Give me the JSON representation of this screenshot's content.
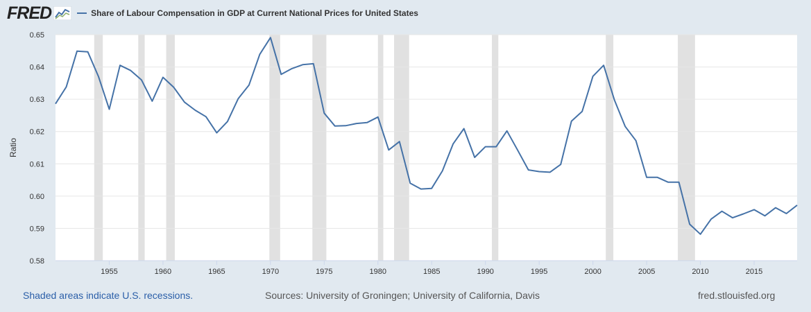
{
  "logo": {
    "text": "FRED",
    "icon": "chart-line-icon"
  },
  "footer": {
    "recessions_note": "Shaded areas indicate U.S. recessions.",
    "sources": "Sources: University of Groningen; University of California, Davis",
    "site": "fred.stlouisfed.org"
  },
  "colors": {
    "line": "#4572a7",
    "recession": "#e1e1e1",
    "background": "#e1e9f0",
    "plot": "#ffffff",
    "grid": "#e6e6e6"
  },
  "chart_data": {
    "type": "line",
    "title": "",
    "xlabel": "",
    "ylabel": "Ratio",
    "xlim": [
      1950,
      2019
    ],
    "ylim": [
      0.58,
      0.65
    ],
    "grid": true,
    "legend": "top-left",
    "x_ticks": [
      "1955",
      "1960",
      "1965",
      "1970",
      "1975",
      "1980",
      "1985",
      "1990",
      "1995",
      "2000",
      "2005",
      "2010",
      "2015"
    ],
    "y_ticks": [
      "0.58",
      "0.59",
      "0.60",
      "0.61",
      "0.62",
      "0.63",
      "0.64",
      "0.65"
    ],
    "recessions": [
      [
        1953.6,
        1954.4
      ],
      [
        1957.7,
        1958.3
      ],
      [
        1960.3,
        1961.1
      ],
      [
        1969.9,
        1970.9
      ],
      [
        1973.9,
        1975.2
      ],
      [
        1980.0,
        1980.5
      ],
      [
        1981.5,
        1982.9
      ],
      [
        1990.6,
        1991.2
      ],
      [
        2001.2,
        2001.9
      ],
      [
        2007.9,
        2009.5
      ]
    ],
    "series": [
      {
        "name": "Share of Labour Compensation in GDP at Current National Prices for United States",
        "x": [
          1950,
          1951,
          1952,
          1953,
          1954,
          1955,
          1956,
          1957,
          1958,
          1959,
          1960,
          1961,
          1962,
          1963,
          1964,
          1965,
          1966,
          1967,
          1968,
          1969,
          1970,
          1971,
          1972,
          1973,
          1974,
          1975,
          1976,
          1977,
          1978,
          1979,
          1980,
          1981,
          1982,
          1983,
          1984,
          1985,
          1986,
          1987,
          1988,
          1989,
          1990,
          1991,
          1992,
          1993,
          1994,
          1995,
          1996,
          1997,
          1998,
          1999,
          2000,
          2001,
          2002,
          2003,
          2004,
          2005,
          2006,
          2007,
          2008,
          2009,
          2010,
          2011,
          2012,
          2013,
          2014,
          2015,
          2016,
          2017,
          2018,
          2019
        ],
        "values": [
          0.6286,
          0.6338,
          0.6449,
          0.6447,
          0.637,
          0.6269,
          0.6405,
          0.6389,
          0.636,
          0.6294,
          0.6368,
          0.6337,
          0.6291,
          0.6266,
          0.6246,
          0.6196,
          0.6231,
          0.6302,
          0.6344,
          0.6439,
          0.6491,
          0.6377,
          0.6395,
          0.6407,
          0.641,
          0.6257,
          0.6217,
          0.6218,
          0.6225,
          0.6228,
          0.6245,
          0.6143,
          0.6169,
          0.604,
          0.6022,
          0.6024,
          0.6078,
          0.6162,
          0.6209,
          0.612,
          0.6153,
          0.6153,
          0.6202,
          0.6142,
          0.6081,
          0.6076,
          0.6074,
          0.6098,
          0.6232,
          0.6262,
          0.6371,
          0.6405,
          0.6298,
          0.6216,
          0.6172,
          0.6058,
          0.6058,
          0.6043,
          0.6043,
          0.5913,
          0.5882,
          0.5929,
          0.5953,
          0.5933,
          0.5945,
          0.5958,
          0.5939,
          0.5964,
          0.5946,
          0.5972
        ]
      }
    ]
  }
}
